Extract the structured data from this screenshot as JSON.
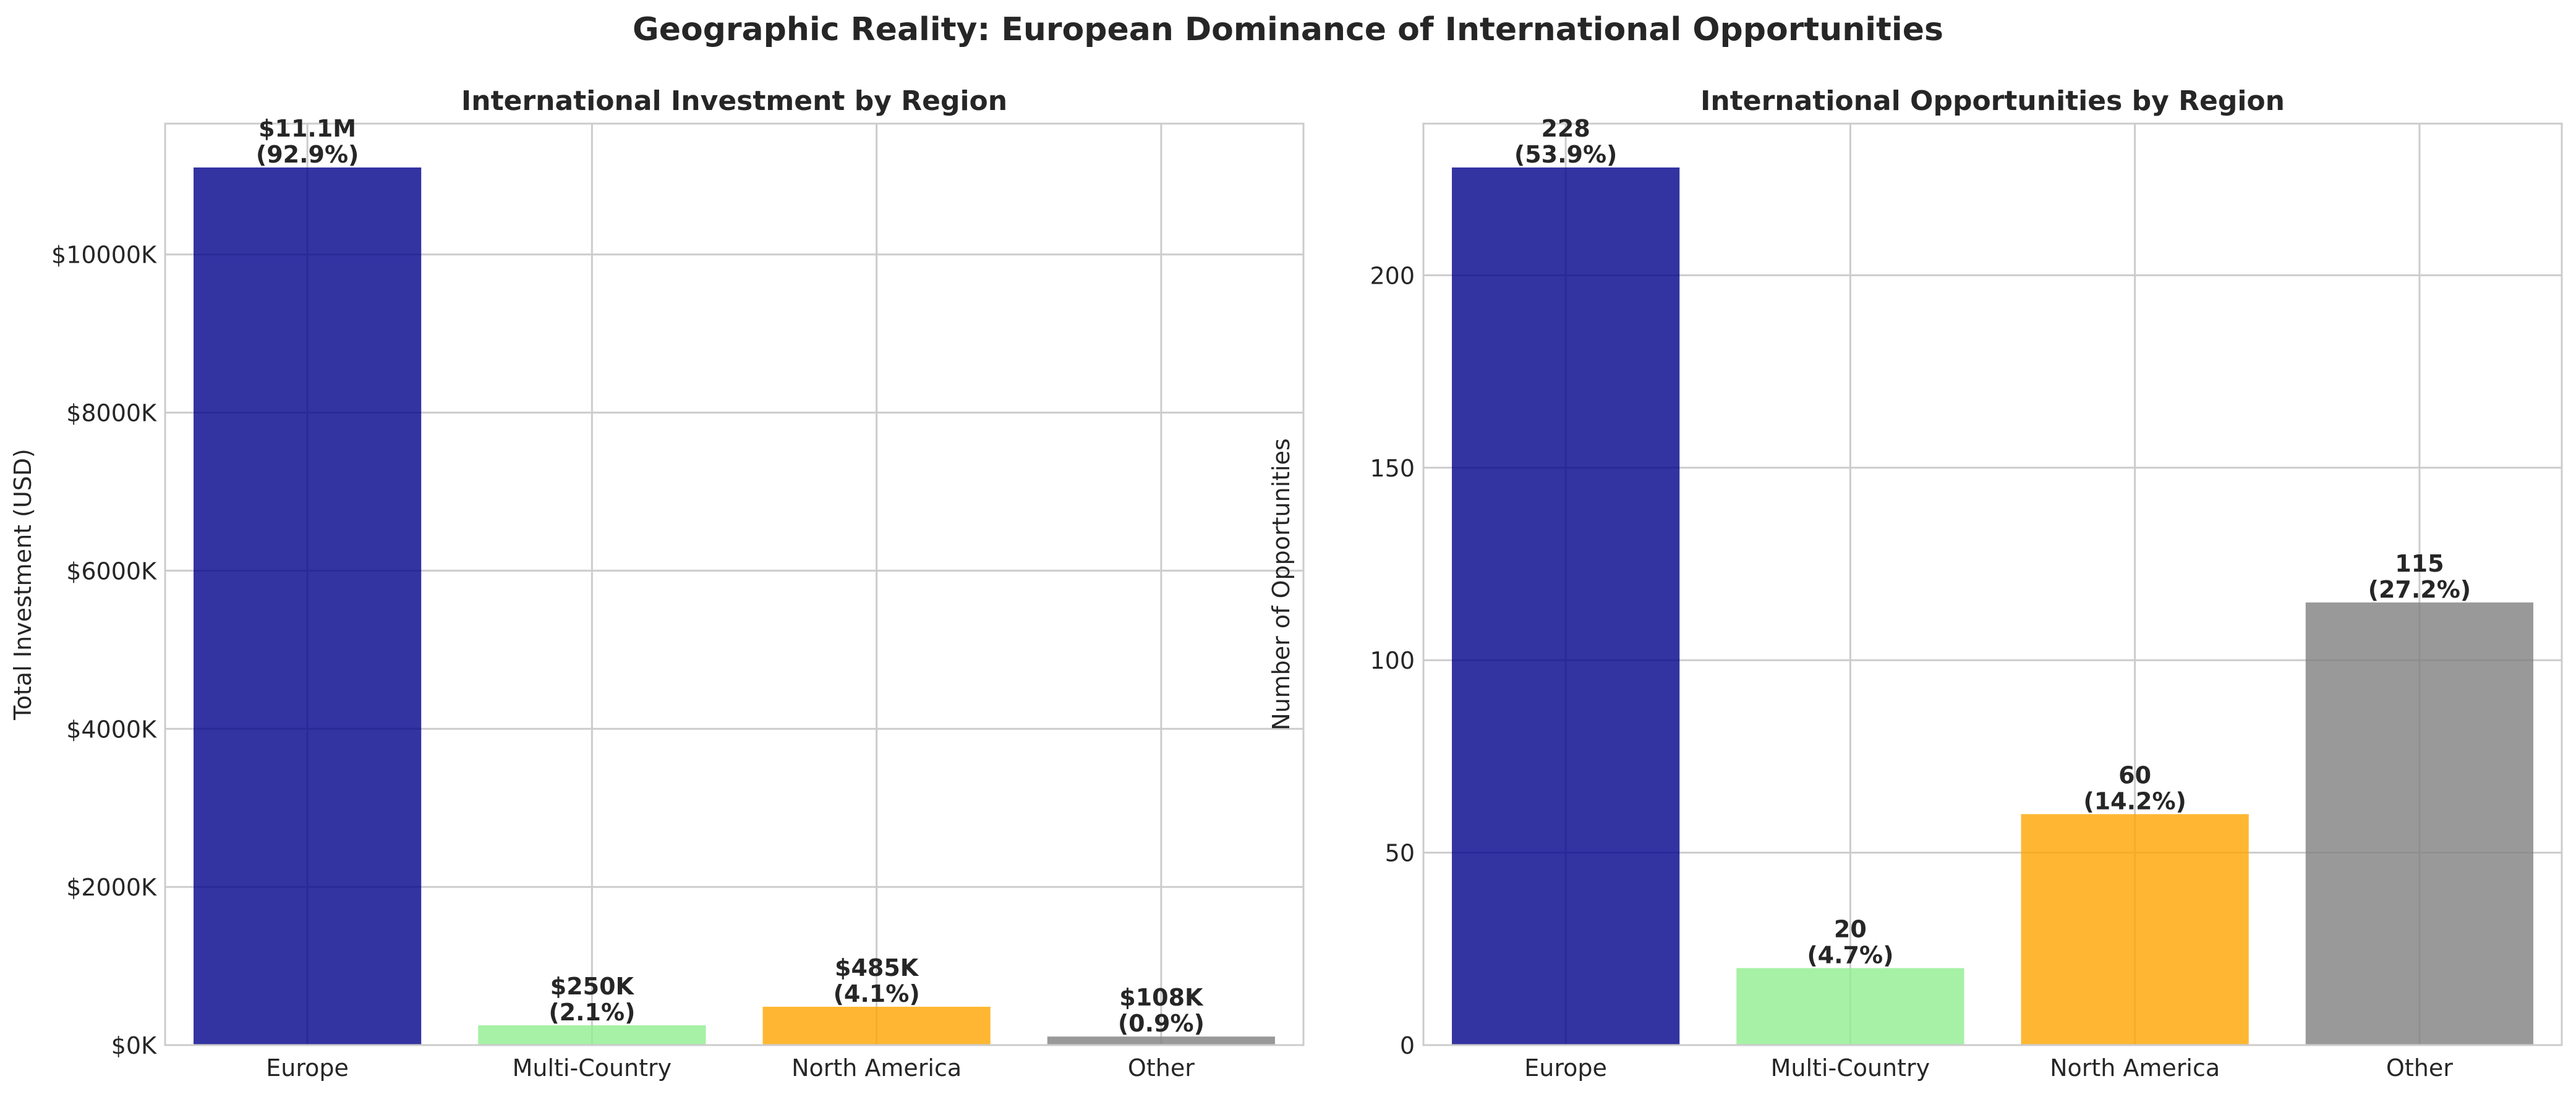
{
  "figure": {
    "title": "Geographic Reality: European Dominance of International Opportunities"
  },
  "chart_data": [
    {
      "type": "bar",
      "title": "International Investment by Region",
      "xlabel": "",
      "ylabel": "Total Investment (USD)",
      "categories": [
        "Europe",
        "Multi-Country",
        "North America",
        "Other"
      ],
      "values": [
        11100000,
        250000,
        485000,
        108000
      ],
      "data_labels": [
        [
          "$11.1M",
          "(92.9%)"
        ],
        [
          "$250K",
          "(2.1%)"
        ],
        [
          "$485K",
          "(4.1%)"
        ],
        [
          "$108K",
          "(0.9%)"
        ]
      ],
      "ylim": [
        0,
        11655000
      ],
      "yticks": [
        0,
        2000000,
        4000000,
        6000000,
        8000000,
        10000000
      ],
      "ytick_labels": [
        "$0K",
        "$2000K",
        "$4000K",
        "$6000K",
        "$8000K",
        "$10000K"
      ],
      "colors": [
        "#00008b",
        "#90ee90",
        "#ffa500",
        "#808080"
      ],
      "grid": true,
      "legend": "none"
    },
    {
      "type": "bar",
      "title": "International Opportunities by Region",
      "xlabel": "",
      "ylabel": "Number of Opportunities",
      "categories": [
        "Europe",
        "Multi-Country",
        "North America",
        "Other"
      ],
      "values": [
        228,
        20,
        60,
        115
      ],
      "data_labels": [
        [
          "228",
          "(53.9%)"
        ],
        [
          "20",
          "(4.7%)"
        ],
        [
          "60",
          "(14.2%)"
        ],
        [
          "115",
          "(27.2%)"
        ]
      ],
      "ylim": [
        0,
        239.4
      ],
      "yticks": [
        0,
        50,
        100,
        150,
        200
      ],
      "ytick_labels": [
        "0",
        "50",
        "100",
        "150",
        "200"
      ],
      "colors": [
        "#00008b",
        "#90ee90",
        "#ffa500",
        "#808080"
      ],
      "grid": true,
      "legend": "none"
    }
  ]
}
